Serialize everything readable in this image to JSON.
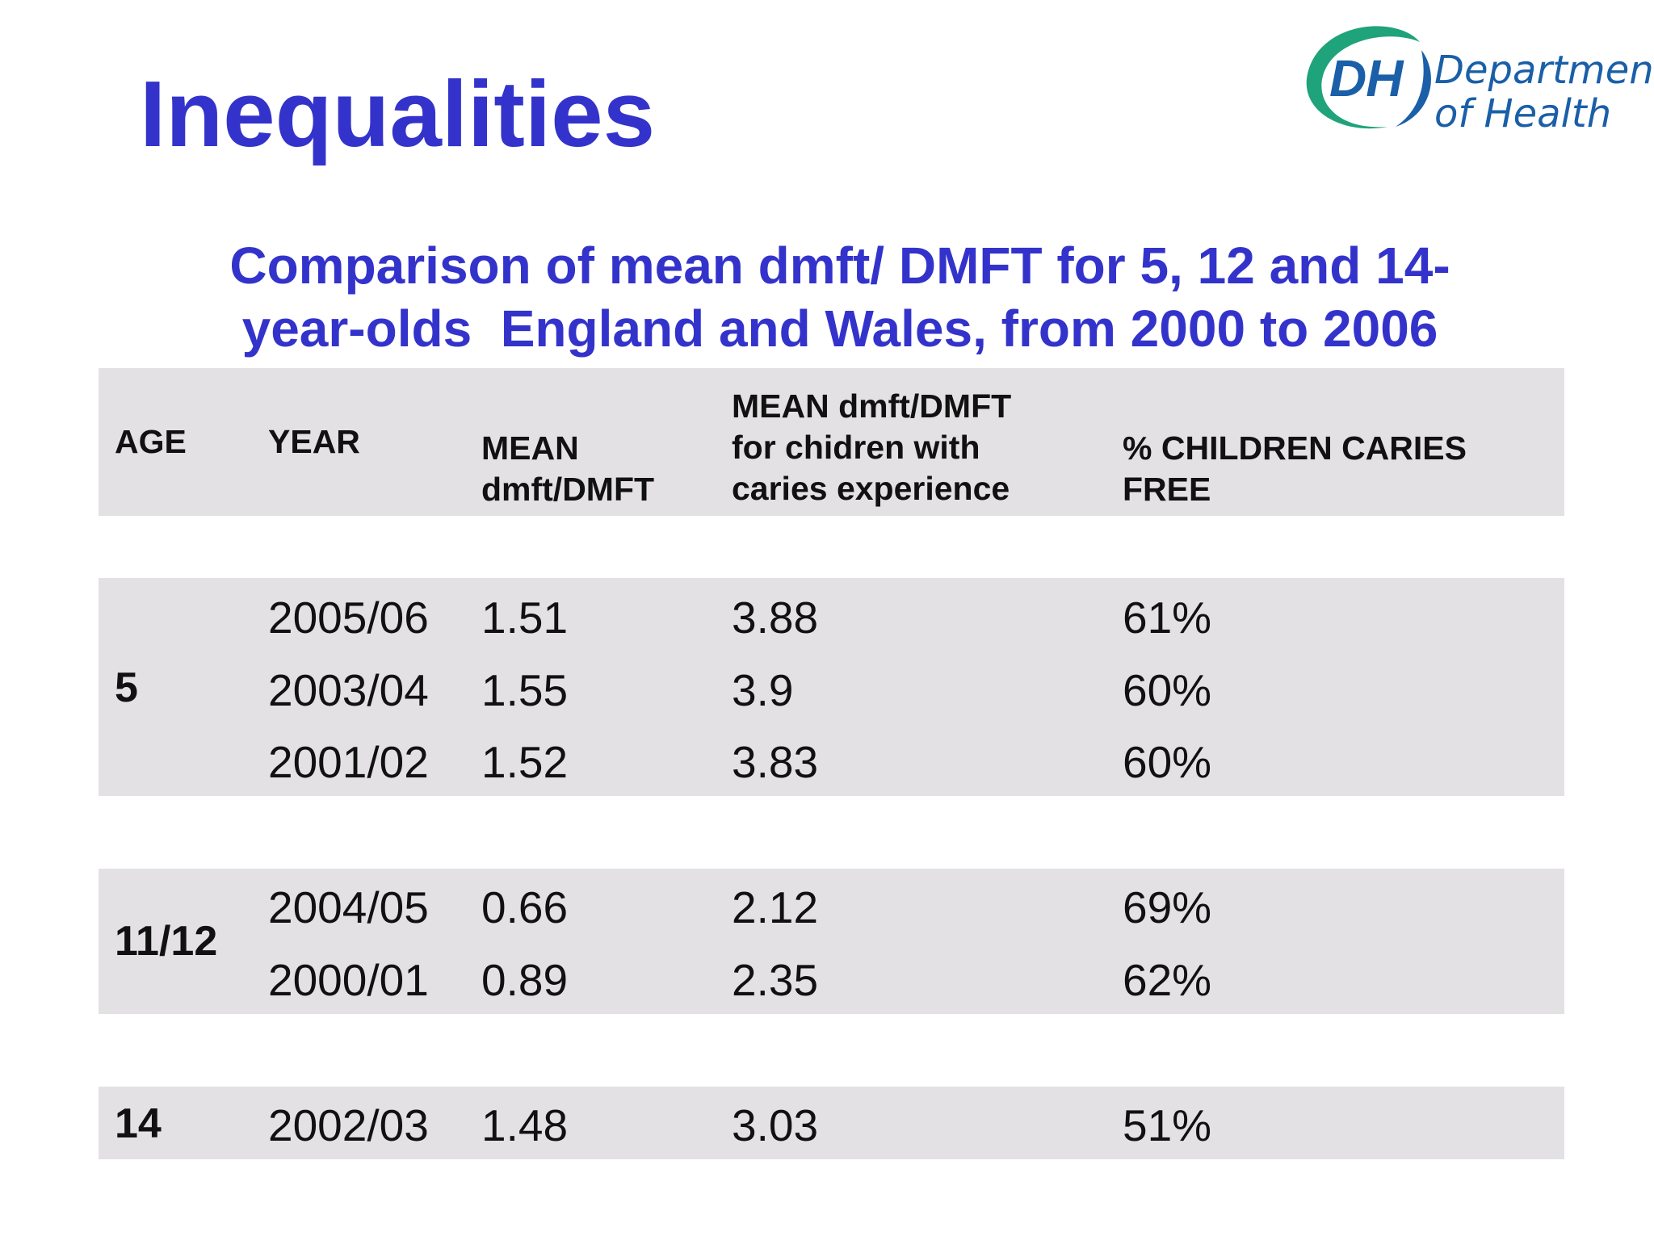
{
  "title": "Inequalities",
  "logo": {
    "mark": "DH",
    "line1": "Department",
    "line2": "of Health",
    "accent_green": "#1fa37a",
    "accent_blue": "#1a5fa8"
  },
  "subtitle": {
    "line1": "Comparison of mean dmft/ DMFT for 5, 12 and 14-",
    "line2": "year-olds  England and Wales, from 2000 to 2006"
  },
  "table": {
    "headers": {
      "age": "AGE",
      "year": "YEAR",
      "mean_l1": "MEAN",
      "mean_l2": "dmft/DMFT",
      "caries_l1": "MEAN dmft/DMFT",
      "caries_l2": "for chidren with",
      "caries_l3": "caries experience",
      "free_l1": "% CHILDREN CARIES",
      "free_l2": "FREE"
    },
    "groups": [
      {
        "age": "5",
        "rows": [
          {
            "year": "2005/06",
            "mean": "1.51",
            "caries": "3.88",
            "free": "61%"
          },
          {
            "year": "2003/04",
            "mean": "1.55",
            "caries": "3.9",
            "free": "60%"
          },
          {
            "year": "2001/02",
            "mean": "1.52",
            "caries": "3.83",
            "free": "60%"
          }
        ]
      },
      {
        "age": "11/12",
        "rows": [
          {
            "year": "2004/05",
            "mean": "0.66",
            "caries": "2.12",
            "free": "69%"
          },
          {
            "year": "2000/01",
            "mean": "0.89",
            "caries": "2.35",
            "free": "62%"
          }
        ]
      },
      {
        "age": "14",
        "rows": [
          {
            "year": "2002/03",
            "mean": "1.48",
            "caries": "3.03",
            "free": "51%"
          }
        ]
      }
    ]
  },
  "colors": {
    "heading": "#3333cc",
    "band": "#e3e1e4"
  }
}
